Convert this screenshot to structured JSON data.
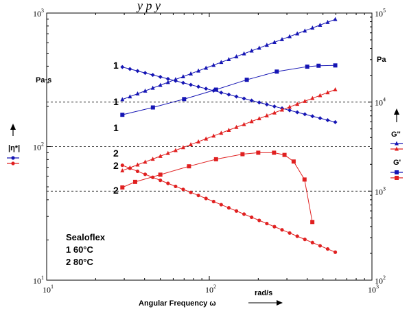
{
  "header_text": "y  p               y",
  "chart_data": {
    "type": "line",
    "xscale": "log",
    "xlim": [
      10,
      1000
    ],
    "x_ticks": [
      {
        "base": "10",
        "exp": "1",
        "v": 10
      },
      {
        "base": "10",
        "exp": "2",
        "v": 100
      },
      {
        "base": "10",
        "exp": "3",
        "v": 1000
      }
    ],
    "xlabel": "Angular Frequency",
    "xlabel_symbol": "ω",
    "x_unit": "rad/s",
    "y_left": {
      "scale": "log",
      "lim": [
        10,
        1000
      ],
      "unit": "Pa·s",
      "ticks": [
        {
          "base": "10",
          "exp": "1",
          "v": 10
        },
        {
          "base": "10",
          "exp": "2",
          "v": 100
        },
        {
          "base": "10",
          "exp": "3",
          "v": 1000
        }
      ]
    },
    "y_right": {
      "scale": "log",
      "lim": [
        100,
        100000
      ],
      "unit": "Pa",
      "ticks": [
        {
          "base": "10",
          "exp": "2",
          "v": 100
        },
        {
          "base": "10",
          "exp": "3",
          "v": 1000
        },
        {
          "base": "10",
          "exp": "4",
          "v": 10000
        },
        {
          "base": "10",
          "exp": "5",
          "v": 100000
        }
      ]
    },
    "gridlines_y_left": [
      100
    ],
    "gridlines_y_right": [
      1000,
      10000
    ],
    "legend": {
      "left": {
        "label": "|η*|"
      },
      "right": [
        {
          "label": "G''"
        },
        {
          "label": "G'"
        }
      ]
    },
    "annotation": {
      "title": "Sealoflex",
      "lines": [
        "1  60°C",
        "2  80°C"
      ]
    },
    "curve_labels": [
      {
        "text": "1",
        "series": "|η*| 60°C"
      },
      {
        "text": "1",
        "series": "G'' 60°C"
      },
      {
        "text": "1",
        "series": "G' 60°C"
      },
      {
        "text": "2",
        "series": "G'' 80°C"
      },
      {
        "text": "2",
        "series": "G' 80°C"
      },
      {
        "text": "2",
        "series": "|η*| 80°C"
      }
    ],
    "colors": {
      "t60": "#1515b4",
      "t80": "#e02020"
    },
    "series": [
      {
        "key": "eta60",
        "curve": "1",
        "quantity": "|η*|",
        "axis": "left",
        "marker": "diamond",
        "color": "#1515b4",
        "x": [
          29.2,
          595
        ],
        "y": [
          394,
          152.5
        ],
        "n": 29
      },
      {
        "key": "Gpp60",
        "curve": "1",
        "quantity": "G''",
        "axis": "right",
        "marker": "triangle",
        "color": "#1515b4",
        "x": [
          29.2,
          595
        ],
        "y": [
          10700,
          85000
        ],
        "n": 29
      },
      {
        "key": "Gp60",
        "curve": "1",
        "quantity": "G'",
        "axis": "right",
        "marker": "square",
        "color": "#1515b4",
        "x": [
          29.2,
          45,
          70,
          110,
          170,
          260,
          400,
          470,
          595
        ],
        "y": [
          7200,
          8700,
          10800,
          13800,
          17800,
          22000,
          25000,
          25600,
          25800
        ]
      },
      {
        "key": "Gpp80",
        "curve": "2",
        "quantity": "G''",
        "axis": "right",
        "marker": "triangle",
        "color": "#e02020",
        "x": [
          29.2,
          595
        ],
        "y": [
          1700,
          13800
        ],
        "n": 29
      },
      {
        "key": "Gp80",
        "curve": "2",
        "quantity": "G'",
        "axis": "right",
        "marker": "square",
        "color": "#e02020",
        "x": [
          29.2,
          35,
          50,
          75,
          110,
          160,
          200,
          250,
          290,
          330,
          385,
          430
        ],
        "y": [
          1100,
          1270,
          1530,
          1900,
          2280,
          2600,
          2700,
          2700,
          2550,
          2150,
          1350,
          450
        ]
      },
      {
        "key": "eta80",
        "curve": "2",
        "quantity": "|η*|",
        "axis": "left",
        "marker": "circle",
        "color": "#e02020",
        "x": [
          29.2,
          100,
          300,
          595
        ],
        "y": [
          72.5,
          40,
          23,
          16.2
        ],
        "n": 29
      }
    ]
  }
}
